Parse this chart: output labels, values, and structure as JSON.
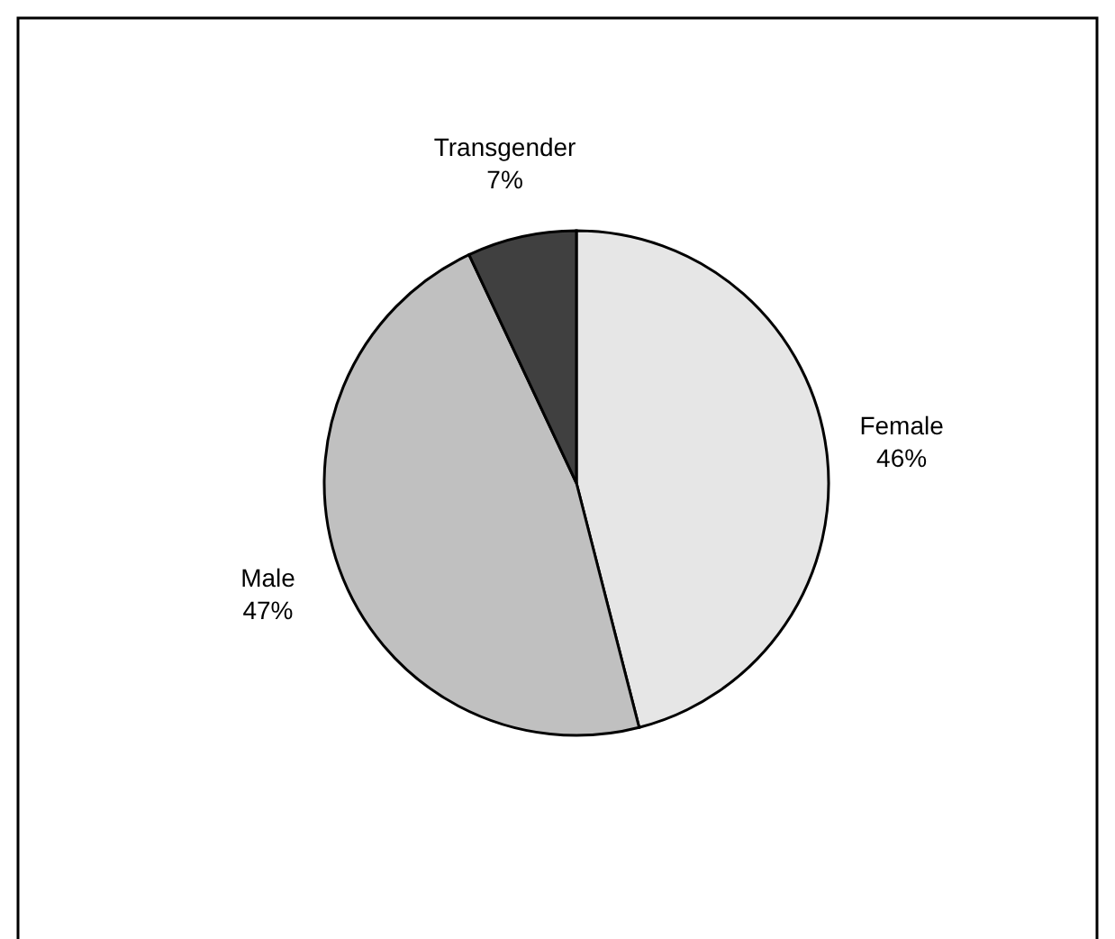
{
  "chart_data": {
    "type": "pie",
    "categories": [
      "Female",
      "Male",
      "Transgender"
    ],
    "values": [
      46,
      47,
      7
    ],
    "colors": [
      "#e6e6e6",
      "#c0c0c0",
      "#404040"
    ],
    "value_labels": [
      "46%",
      "47%",
      "7%"
    ]
  }
}
